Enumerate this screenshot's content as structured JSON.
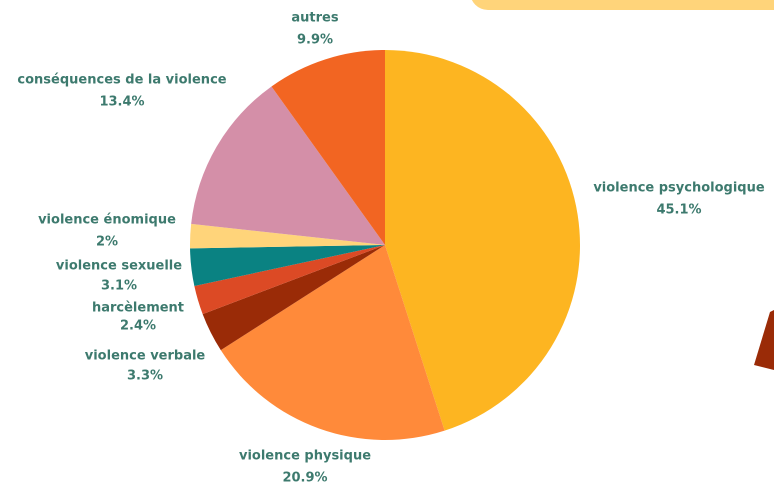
{
  "chart_data": {
    "type": "pie",
    "categories": [
      "violence psychologique",
      "violence physique",
      "violence verbale",
      "harcèlement",
      "violence sexuelle",
      "violence énomique",
      "conséquences de la violence",
      "autres"
    ],
    "values": [
      45.1,
      20.9,
      3.3,
      2.4,
      3.1,
      2,
      13.4,
      9.9
    ],
    "value_labels": [
      "45.1%",
      "20.9%",
      "3.3%",
      "2.4%",
      "3.1%",
      "2%",
      "13.4%",
      "9.9%"
    ],
    "colors": [
      "#fdb521",
      "#ff8a3a",
      "#9a2b07",
      "#dc4a25",
      "#0a8282",
      "#ffd47a",
      "#d48fa8",
      "#f26522"
    ]
  }
}
